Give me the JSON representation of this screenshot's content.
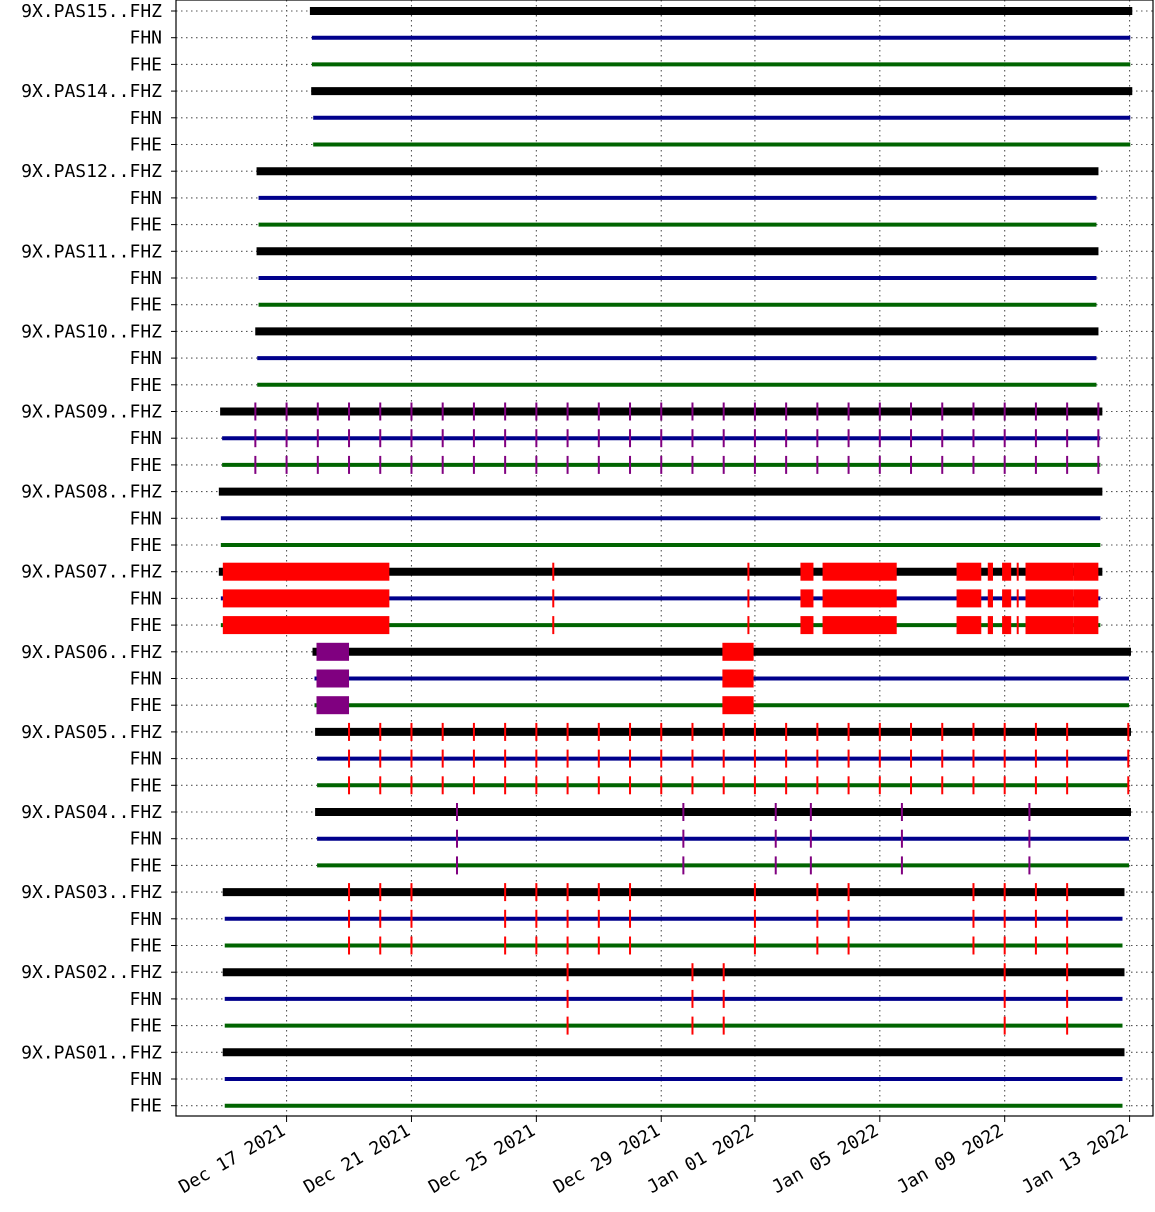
{
  "chart_data": {
    "type": "timeline",
    "channel_colors": {
      "FHZ": "#000000",
      "FHN": "#00008b",
      "FHE": "#006400"
    },
    "marker_colors": {
      "red": "#ff0000",
      "purple": "#800080"
    },
    "grid": true,
    "xlim": [
      "2021-12-13T11:00",
      "2022-01-13T18:00"
    ],
    "x_ticks": [
      {
        "date": "2021-12-17",
        "label": "Dec 17 2021"
      },
      {
        "date": "2021-12-21",
        "label": "Dec 21 2021"
      },
      {
        "date": "2021-12-25",
        "label": "Dec 25 2021"
      },
      {
        "date": "2021-12-29",
        "label": "Dec 29 2021"
      },
      {
        "date": "2022-01-01",
        "label": "Jan 01 2022"
      },
      {
        "date": "2022-01-05",
        "label": "Jan 05 2022"
      },
      {
        "date": "2022-01-09",
        "label": "Jan 09 2022"
      },
      {
        "date": "2022-01-13",
        "label": "Jan 13 2022"
      }
    ],
    "stations": [
      {
        "label": "9X.PAS15..FHZ",
        "start": "2021-12-17T21:00",
        "end": "2022-01-12T23:00",
        "gaps_red_ticks": [],
        "gaps_purple_ticks": [],
        "gaps_red_spans": [],
        "gaps_purple_spans": []
      },
      {
        "label": "9X.PAS14..FHZ",
        "start": "2021-12-17T22:00",
        "end": "2022-01-12T23:00",
        "gaps_red_ticks": [],
        "gaps_purple_ticks": [],
        "gaps_red_spans": [],
        "gaps_purple_spans": []
      },
      {
        "label": "9X.PAS12..FHZ",
        "start": "2021-12-16T04:00",
        "end": "2022-01-11T21:00",
        "gaps_red_ticks": [],
        "gaps_purple_ticks": [],
        "gaps_red_spans": [],
        "gaps_purple_spans": []
      },
      {
        "label": "9X.PAS11..FHZ",
        "start": "2021-12-16T04:00",
        "end": "2022-01-11T21:00",
        "gaps_red_ticks": [],
        "gaps_purple_ticks": [],
        "gaps_red_spans": [],
        "gaps_purple_spans": []
      },
      {
        "label": "9X.PAS10..FHZ",
        "start": "2021-12-16T03:00",
        "end": "2022-01-11T21:00",
        "gaps_red_ticks": [],
        "gaps_purple_ticks": [],
        "gaps_red_spans": [],
        "gaps_purple_spans": []
      },
      {
        "label": "9X.PAS09..FHZ",
        "start": "2021-12-15T00:00",
        "end": "2022-01-12T00:00",
        "gaps_red_ticks": [],
        "gaps_purple_ticks": [
          "2021-12-16T00:00",
          "2021-12-17T00:00",
          "2021-12-18T00:00",
          "2021-12-19T00:00",
          "2021-12-20T00:00",
          "2021-12-21T00:00",
          "2021-12-22T00:00",
          "2021-12-23T00:00",
          "2021-12-24T00:00",
          "2021-12-25T00:00",
          "2021-12-26T00:00",
          "2021-12-27T00:00",
          "2021-12-28T00:00",
          "2021-12-29T00:00",
          "2021-12-30T00:00",
          "2021-12-31T00:00",
          "2022-01-01T00:00",
          "2022-01-02T00:00",
          "2022-01-03T00:00",
          "2022-01-04T00:00",
          "2022-01-05T00:00",
          "2022-01-06T00:00",
          "2022-01-07T00:00",
          "2022-01-08T00:00",
          "2022-01-09T00:00",
          "2022-01-10T00:00",
          "2022-01-11T00:00",
          "2022-01-12T00:00"
        ],
        "gaps_red_spans": [],
        "gaps_purple_spans": []
      },
      {
        "label": "9X.PAS08..FHZ",
        "start": "2021-12-14T23:00",
        "end": "2022-01-12T00:00",
        "gaps_red_ticks": [],
        "gaps_purple_ticks": [],
        "gaps_red_spans": [],
        "gaps_purple_spans": []
      },
      {
        "label": "9X.PAS07..FHZ",
        "start": "2021-12-14T23:00",
        "end": "2022-01-12T00:00",
        "gaps_red_ticks": [
          "2021-12-25T13:00",
          "2021-12-31T19:00",
          "2022-01-05T00:00",
          "2022-01-09T10:00"
        ],
        "gaps_purple_ticks": [],
        "gaps_red_spans": [
          [
            "2021-12-14T23:00",
            "2021-12-20T07:00"
          ],
          [
            "2022-01-02T11:00",
            "2022-01-02T21:00"
          ],
          [
            "2022-01-03T04:00",
            "2022-01-05T13:00"
          ],
          [
            "2022-01-07T11:00",
            "2022-01-08T06:00"
          ],
          [
            "2022-01-08T11:00",
            "2022-01-08T15:00"
          ],
          [
            "2022-01-08T22:00",
            "2022-01-09T05:00"
          ],
          [
            "2022-01-09T16:00",
            "2022-01-11T05:00"
          ],
          [
            "2022-01-11T05:00",
            "2022-01-12T00:00"
          ]
        ],
        "gaps_purple_spans": []
      },
      {
        "label": "9X.PAS06..FHZ",
        "start": "2021-12-17T23:00",
        "end": "2022-01-12T22:00",
        "gaps_red_ticks": [],
        "gaps_purple_ticks": [],
        "gaps_red_spans": [
          [
            "2021-12-30T23:00",
            "2021-12-31T23:00"
          ]
        ],
        "gaps_purple_spans": [
          [
            "2021-12-17T23:00",
            "2021-12-19T00:00"
          ]
        ]
      },
      {
        "label": "9X.PAS05..FHZ",
        "start": "2021-12-18T01:00",
        "end": "2022-01-12T22:00",
        "gaps_red_ticks": [
          "2021-12-19T00:00",
          "2021-12-20T00:00",
          "2021-12-21T00:00",
          "2021-12-22T00:00",
          "2021-12-23T00:00",
          "2021-12-24T00:00",
          "2021-12-25T00:00",
          "2021-12-26T00:00",
          "2021-12-27T00:00",
          "2021-12-28T00:00",
          "2021-12-29T00:00",
          "2021-12-30T00:00",
          "2021-12-31T00:00",
          "2022-01-01T00:00",
          "2022-01-02T00:00",
          "2022-01-03T00:00",
          "2022-01-04T00:00",
          "2022-01-05T00:00",
          "2022-01-06T00:00",
          "2022-01-07T00:00",
          "2022-01-08T00:00",
          "2022-01-09T00:00",
          "2022-01-10T00:00",
          "2022-01-11T00:00",
          "2022-01-12T23:00"
        ],
        "gaps_purple_ticks": [],
        "gaps_red_spans": [],
        "gaps_purple_spans": []
      },
      {
        "label": "9X.PAS04..FHZ",
        "start": "2021-12-18T01:00",
        "end": "2022-01-12T22:00",
        "gaps_red_ticks": [],
        "gaps_purple_ticks": [
          "2021-12-22T11:00",
          "2021-12-29T17:00",
          "2022-01-01T16:00",
          "2022-01-02T19:00",
          "2022-01-05T17:00",
          "2022-01-09T19:00"
        ],
        "gaps_red_spans": [],
        "gaps_purple_spans": []
      },
      {
        "label": "9X.PAS03..FHZ",
        "start": "2021-12-15T02:00",
        "end": "2022-01-12T17:00",
        "gaps_red_ticks": [
          "2021-12-19T00:00",
          "2021-12-20T00:00",
          "2021-12-21T00:00",
          "2021-12-24T00:00",
          "2021-12-25T00:00",
          "2021-12-26T00:00",
          "2021-12-27T00:00",
          "2021-12-28T00:00",
          "2022-01-01T00:00",
          "2022-01-03T00:00",
          "2022-01-04T00:00",
          "2022-01-08T00:00",
          "2022-01-09T00:00",
          "2022-01-10T00:00",
          "2022-01-11T00:00"
        ],
        "gaps_purple_ticks": [],
        "gaps_red_spans": [],
        "gaps_purple_spans": []
      },
      {
        "label": "9X.PAS02..FHZ",
        "start": "2021-12-15T02:00",
        "end": "2022-01-12T17:00",
        "gaps_red_ticks": [
          "2021-12-26T00:00",
          "2021-12-30T00:00",
          "2021-12-31T00:00",
          "2022-01-09T00:00",
          "2022-01-11T00:00"
        ],
        "gaps_purple_ticks": [],
        "gaps_red_spans": [],
        "gaps_purple_spans": []
      },
      {
        "label": "9X.PAS01..FHZ",
        "start": "2021-12-15T02:00",
        "end": "2022-01-12T17:00",
        "gaps_red_ticks": [],
        "gaps_purple_ticks": [],
        "gaps_red_spans": [],
        "gaps_purple_spans": []
      }
    ],
    "sub_channels": [
      "FHN",
      "FHE"
    ]
  }
}
